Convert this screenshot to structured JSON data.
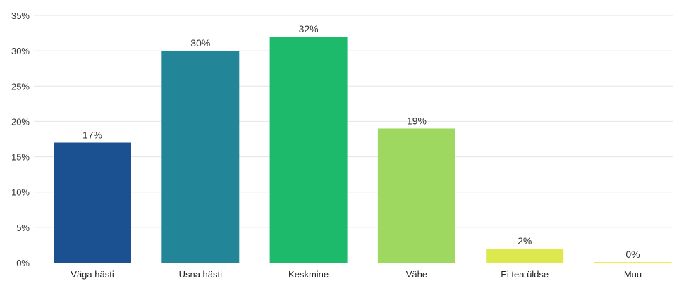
{
  "chart_data": {
    "type": "bar",
    "categories": [
      "Väga hästi",
      "Üsna hästi",
      "Keskmine",
      "Vähe",
      "Ei tea üldse",
      "Muu"
    ],
    "values": [
      17,
      30,
      32,
      19,
      2,
      0
    ],
    "data_labels": [
      "17%",
      "30%",
      "32%",
      "19%",
      "2%",
      "0%"
    ],
    "colors": [
      "#1b5191",
      "#238598",
      "#1dba6c",
      "#9fd860",
      "#dde84f",
      "#f3e94a"
    ],
    "yticks": [
      0,
      5,
      10,
      15,
      20,
      25,
      30,
      35
    ],
    "ytick_labels": [
      "0%",
      "5%",
      "10%",
      "15%",
      "20%",
      "25%",
      "30%",
      "35%"
    ],
    "ylim": [
      0,
      35
    ],
    "grid": true,
    "legend": "none",
    "title": "",
    "xlabel": "",
    "ylabel": ""
  }
}
